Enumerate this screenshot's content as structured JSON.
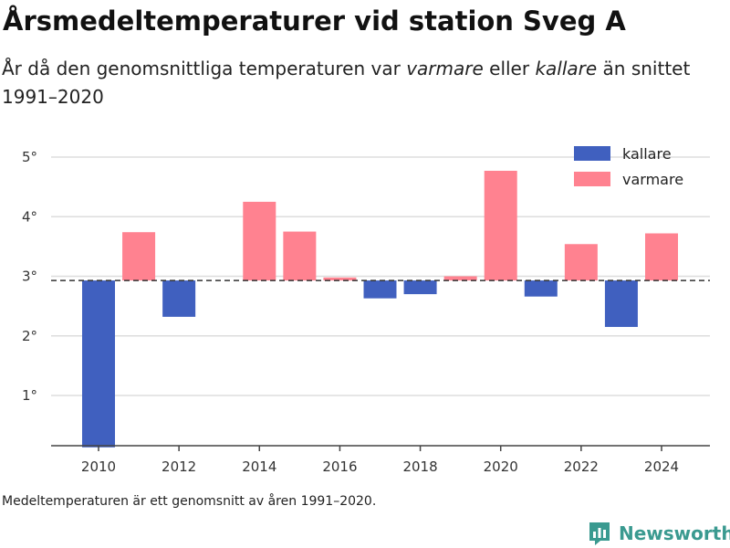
{
  "header": {
    "title": "Årsmedeltemperaturer vid station Sveg A",
    "subtitle_part1": "År då den genomsnittliga temperaturen var ",
    "subtitle_em1": "varmare",
    "subtitle_part2": " eller ",
    "subtitle_em2": "kallare",
    "subtitle_part3": " än snittet 1991–2020"
  },
  "footer": {
    "note": "Medeltemperaturen är ett genomsnitt av åren 1991–2020.",
    "logo_text": "Newsworthy",
    "logo_icon": "newsworthy-logo-icon"
  },
  "colors": {
    "kallare": "#4060bf",
    "varmare": "#ff8290",
    "brand": "#3a9a90",
    "grid": "#dddddd",
    "reference": "#333333"
  },
  "chart_data": {
    "type": "bar",
    "reference_value": 2.93,
    "ylim": [
      0.13,
      5.2
    ],
    "yticks": [
      1,
      2,
      3,
      4,
      5
    ],
    "ytick_labels": [
      "1°",
      "2°",
      "3°",
      "4°",
      "5°"
    ],
    "xlim": [
      2009,
      2025.2
    ],
    "xticks": [
      2010,
      2012,
      2014,
      2016,
      2018,
      2020,
      2022,
      2024
    ],
    "xtick_labels": [
      "2010",
      "2012",
      "2014",
      "2016",
      "2018",
      "2020",
      "2022",
      "2024"
    ],
    "legend": {
      "placement": "top-right",
      "entries": [
        "kallare",
        "varmare"
      ]
    },
    "series": [
      {
        "name": "kallare",
        "x": [
          2010,
          2012,
          2017,
          2018,
          2021,
          2023
        ],
        "values": [
          0.13,
          2.32,
          2.63,
          2.7,
          2.66,
          2.15
        ]
      },
      {
        "name": "varmare",
        "x": [
          2011,
          2014,
          2015,
          2016,
          2019,
          2020,
          2022,
          2024
        ],
        "values": [
          3.74,
          4.25,
          3.75,
          2.98,
          3.0,
          4.77,
          3.54,
          3.72
        ]
      }
    ]
  }
}
